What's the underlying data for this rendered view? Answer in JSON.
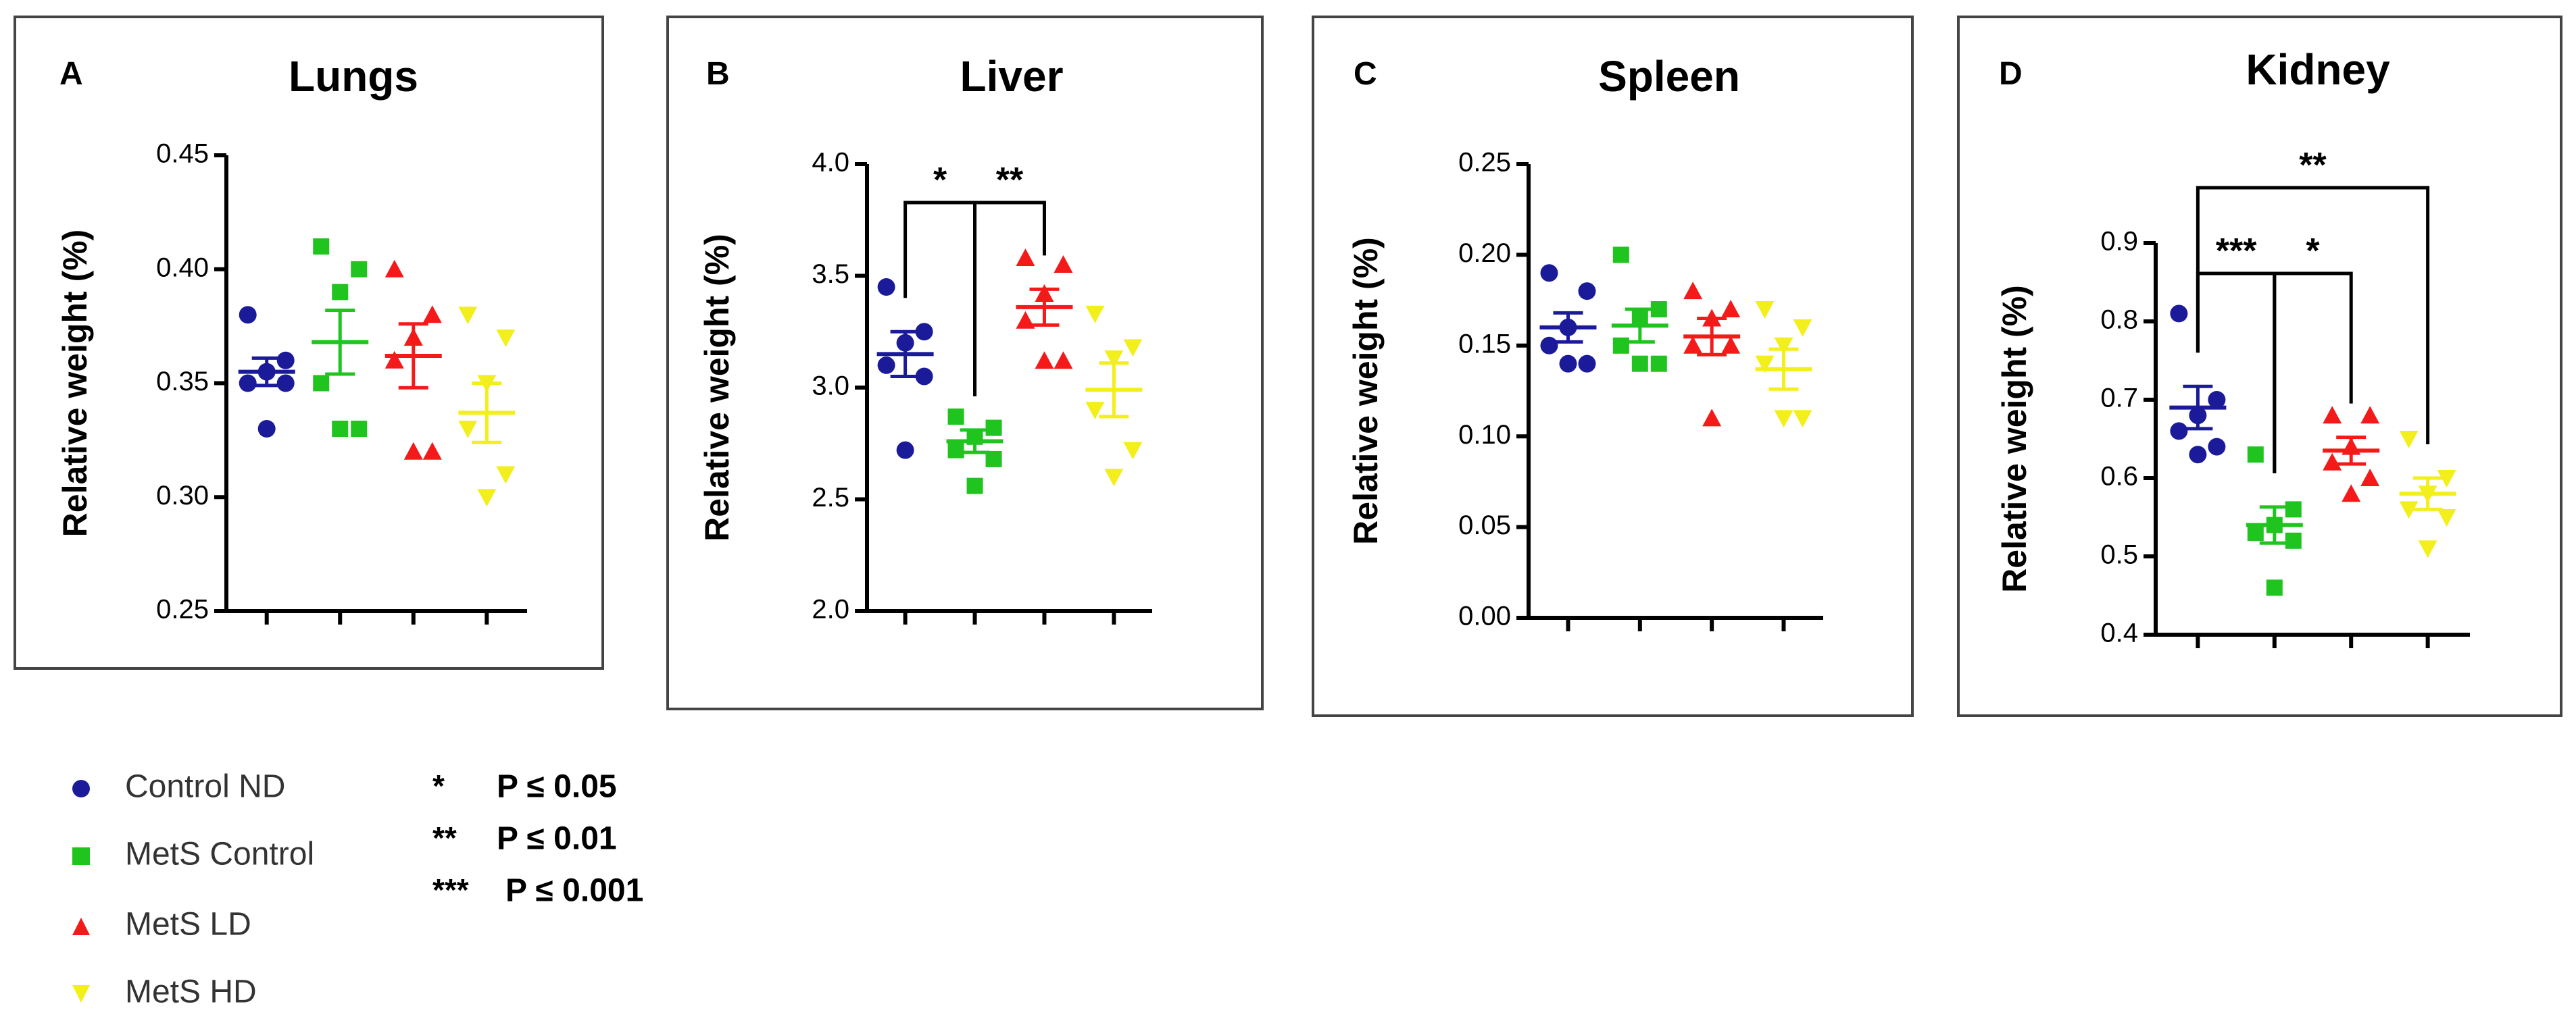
{
  "chart_data": [
    {
      "type": "scatter",
      "panel_letter": "A",
      "title": "Lungs",
      "ylabel": "Relative weight (%)",
      "ylim": [
        0.25,
        0.45
      ],
      "yticks": [
        "0.25",
        "0.30",
        "0.35",
        "0.40",
        "0.45"
      ],
      "categories": [
        "Control ND",
        "MetS Control",
        "MetS LD",
        "MetS HD"
      ],
      "series": [
        {
          "name": "Control ND",
          "points": [
            0.38,
            0.36,
            0.355,
            0.35,
            0.35,
            0.33
          ],
          "mean": 0.355,
          "sem": 0.006
        },
        {
          "name": "MetS Control",
          "points": [
            0.41,
            0.4,
            0.39,
            0.35,
            0.33,
            0.33
          ],
          "mean": 0.368,
          "sem": 0.014
        },
        {
          "name": "MetS LD",
          "points": [
            0.4,
            0.38,
            0.37,
            0.36,
            0.32,
            0.32
          ],
          "mean": 0.362,
          "sem": 0.014
        },
        {
          "name": "MetS HD",
          "points": [
            0.38,
            0.37,
            0.35,
            0.33,
            0.31,
            0.3
          ],
          "mean": 0.337,
          "sem": 0.013
        }
      ],
      "significance": []
    },
    {
      "type": "scatter",
      "panel_letter": "B",
      "title": "Liver",
      "ylabel": "Relative weight (%)",
      "ylim": [
        2.0,
        4.0
      ],
      "yticks": [
        "2.0",
        "2.5",
        "3.0",
        "3.5",
        "4.0"
      ],
      "categories": [
        "Control ND",
        "MetS Control",
        "MetS LD",
        "MetS HD"
      ],
      "series": [
        {
          "name": "Control ND",
          "points": [
            3.45,
            3.25,
            3.2,
            3.1,
            3.05,
            2.72
          ],
          "mean": 3.15,
          "sem": 0.1
        },
        {
          "name": "MetS Control",
          "points": [
            2.87,
            2.82,
            2.78,
            2.72,
            2.68,
            2.56
          ],
          "mean": 2.76,
          "sem": 0.05
        },
        {
          "name": "MetS LD",
          "points": [
            3.58,
            3.55,
            3.42,
            3.3,
            3.12,
            3.12
          ],
          "mean": 3.36,
          "sem": 0.08
        },
        {
          "name": "MetS HD",
          "points": [
            3.33,
            3.18,
            3.13,
            2.9,
            2.72,
            2.6
          ],
          "mean": 2.99,
          "sem": 0.12
        }
      ],
      "significance": [
        {
          "from": 0,
          "to": 1,
          "level": 1,
          "label": "*"
        },
        {
          "from": 1,
          "to": 2,
          "level": 1,
          "label": "**"
        }
      ]
    },
    {
      "type": "scatter",
      "panel_letter": "C",
      "title": "Spleen",
      "ylabel": "Relative weight (%)",
      "ylim": [
        0.0,
        0.25
      ],
      "yticks": [
        "0.00",
        "0.05",
        "0.10",
        "0.15",
        "0.20",
        "0.25"
      ],
      "categories": [
        "Control ND",
        "MetS Control",
        "MetS LD",
        "MetS HD"
      ],
      "series": [
        {
          "name": "Control ND",
          "points": [
            0.19,
            0.18,
            0.16,
            0.15,
            0.14,
            0.14
          ],
          "mean": 0.16,
          "sem": 0.008
        },
        {
          "name": "MetS Control",
          "points": [
            0.2,
            0.17,
            0.165,
            0.15,
            0.14,
            0.14
          ],
          "mean": 0.161,
          "sem": 0.009
        },
        {
          "name": "MetS LD",
          "points": [
            0.18,
            0.17,
            0.165,
            0.15,
            0.15,
            0.11
          ],
          "mean": 0.155,
          "sem": 0.01
        },
        {
          "name": "MetS HD",
          "points": [
            0.17,
            0.16,
            0.15,
            0.14,
            0.11,
            0.11
          ],
          "mean": 0.137,
          "sem": 0.011
        }
      ],
      "significance": []
    },
    {
      "type": "scatter",
      "panel_letter": "D",
      "title": "Kidney",
      "ylabel": "Relative weight (%)",
      "ylim": [
        0.4,
        0.9
      ],
      "yticks": [
        "0.4",
        "0.5",
        "0.6",
        "0.7",
        "0.8",
        "0.9"
      ],
      "categories": [
        "Control ND",
        "MetS Control",
        "MetS LD",
        "MetS HD"
      ],
      "series": [
        {
          "name": "Control ND",
          "points": [
            0.81,
            0.7,
            0.68,
            0.66,
            0.64,
            0.63
          ],
          "mean": 0.69,
          "sem": 0.027
        },
        {
          "name": "MetS Control",
          "points": [
            0.63,
            0.56,
            0.54,
            0.53,
            0.52,
            0.46
          ],
          "mean": 0.54,
          "sem": 0.023
        },
        {
          "name": "MetS LD",
          "points": [
            0.68,
            0.68,
            0.64,
            0.62,
            0.6,
            0.58
          ],
          "mean": 0.635,
          "sem": 0.017
        },
        {
          "name": "MetS HD",
          "points": [
            0.65,
            0.6,
            0.58,
            0.56,
            0.55,
            0.51
          ],
          "mean": 0.58,
          "sem": 0.02
        }
      ],
      "significance": [
        {
          "from": 0,
          "to": 1,
          "level": 1,
          "label": "***"
        },
        {
          "from": 1,
          "to": 2,
          "level": 1,
          "label": "*"
        },
        {
          "from": 0,
          "to": 3,
          "level": 2,
          "label": "**"
        }
      ]
    }
  ],
  "legend": {
    "items": [
      {
        "label": "Control ND",
        "marker": "circle",
        "color": "#1b1b9a"
      },
      {
        "label": "MetS Control",
        "marker": "square",
        "color": "#1fc41f"
      },
      {
        "label": "MetS LD",
        "marker": "triangle-up",
        "color": "#f41a1a"
      },
      {
        "label": "MetS HD",
        "marker": "triangle-down",
        "color": "#f2ef1c"
      }
    ]
  },
  "pvalue_key": {
    "items": [
      {
        "stars": "*",
        "text": "P ≤ 0.05"
      },
      {
        "stars": "**",
        "text": "P ≤ 0.01"
      },
      {
        "stars": "***",
        "text": "P ≤ 0.001"
      }
    ]
  },
  "colors": {
    "Control ND": "#1b1b9a",
    "MetS Control": "#1fc41f",
    "MetS LD": "#f41a1a",
    "MetS HD": "#f2ef1c"
  }
}
